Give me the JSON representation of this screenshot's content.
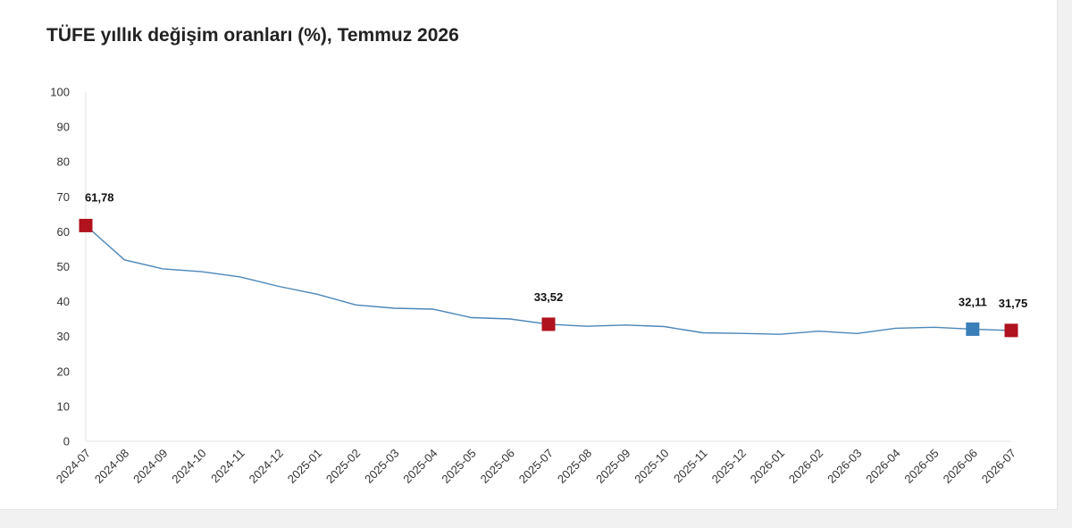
{
  "chart_data": {
    "type": "line",
    "title": "TÜFE yıllık değişim oranları (%), Temmuz 2026",
    "xlabel": "",
    "ylabel": "",
    "ylim": [
      0,
      100
    ],
    "yticks": [
      0,
      10,
      20,
      30,
      40,
      50,
      60,
      70,
      80,
      90,
      100
    ],
    "grid": false,
    "categories": [
      "2024-07",
      "2024-08",
      "2024-09",
      "2024-10",
      "2024-11",
      "2024-12",
      "2025-01",
      "2025-02",
      "2025-03",
      "2025-04",
      "2025-05",
      "2025-06",
      "2025-07",
      "2025-08",
      "2025-09",
      "2025-10",
      "2025-11",
      "2025-12",
      "2026-01",
      "2026-02",
      "2026-03",
      "2026-04",
      "2026-05",
      "2026-06",
      "2026-07"
    ],
    "series": [
      {
        "values": [
          61.78,
          51.97,
          49.38,
          48.58,
          47.09,
          44.38,
          42.12,
          39.05,
          38.1,
          37.86,
          35.41,
          35.05,
          33.52,
          32.95,
          33.29,
          32.87,
          31.07,
          30.89,
          30.65,
          31.53,
          30.87,
          32.37,
          32.65,
          32.11,
          31.75
        ],
        "color": "#4a86b8"
      }
    ],
    "markers": [
      {
        "index": 0,
        "label": "61,78",
        "color": "#b0121e"
      },
      {
        "index": 12,
        "label": "33,52",
        "color": "#b0121e"
      },
      {
        "index": 23,
        "label": "32,11",
        "color": "#3a7fb8"
      },
      {
        "index": 24,
        "label": "31,75",
        "color": "#b0121e"
      }
    ]
  }
}
